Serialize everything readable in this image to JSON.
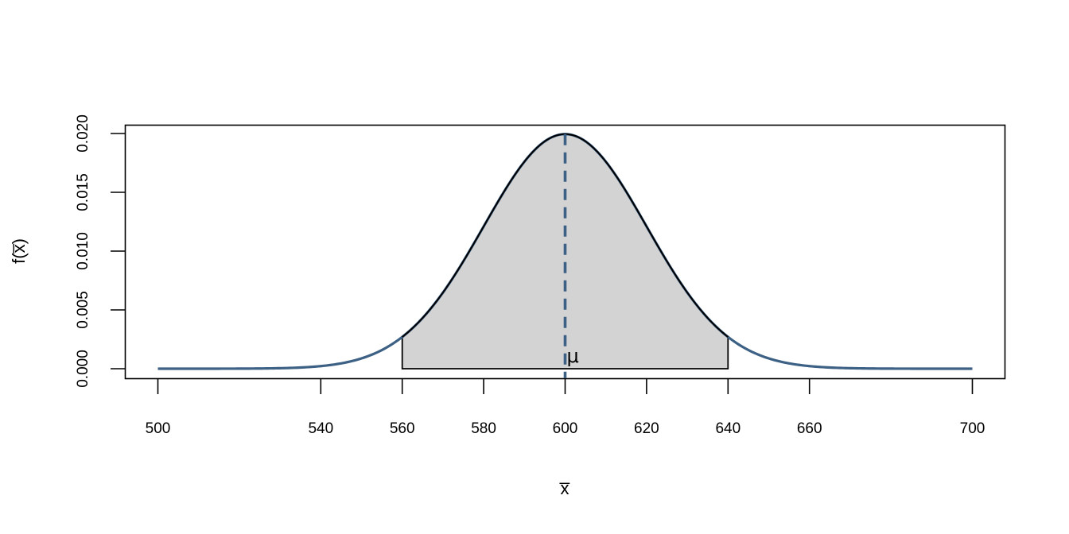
{
  "chart_data": {
    "type": "area",
    "title": "",
    "xlabel": "x̅",
    "ylabel": "f(x̅)",
    "distribution": {
      "mean": 600,
      "sd": 20
    },
    "xlim": [
      500,
      700
    ],
    "ylim": [
      0,
      0.02
    ],
    "x_ticks": [
      500,
      540,
      560,
      580,
      600,
      620,
      640,
      660,
      700
    ],
    "y_ticks": [
      0.0,
      0.005,
      0.01,
      0.015,
      0.02
    ],
    "y_tick_labels": [
      "0.000",
      "0.005",
      "0.010",
      "0.015",
      "0.020"
    ],
    "shaded_interval": [
      560,
      640
    ],
    "mean_line_x": 600,
    "annotation": {
      "text": "μ",
      "x": 600
    },
    "curve_color": "#3d6185",
    "shade_color": "#d3d3d3",
    "mean_line_color": "#3d6185",
    "grid": false,
    "legend": "none"
  }
}
